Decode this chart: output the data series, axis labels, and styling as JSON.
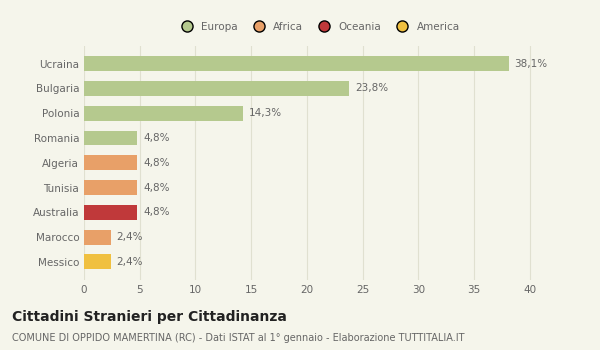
{
  "categories": [
    "Ucraina",
    "Bulgaria",
    "Polonia",
    "Romania",
    "Algeria",
    "Tunisia",
    "Australia",
    "Marocco",
    "Messico"
  ],
  "values": [
    38.1,
    23.8,
    14.3,
    4.8,
    4.8,
    4.8,
    4.8,
    2.4,
    2.4
  ],
  "labels": [
    "38,1%",
    "23,8%",
    "14,3%",
    "4,8%",
    "4,8%",
    "4,8%",
    "4,8%",
    "2,4%",
    "2,4%"
  ],
  "colors": [
    "#b5c98e",
    "#b5c98e",
    "#b5c98e",
    "#b5c98e",
    "#e8a068",
    "#e8a068",
    "#c0393a",
    "#e8a068",
    "#f0c040"
  ],
  "legend": [
    {
      "label": "Europa",
      "color": "#b5c98e"
    },
    {
      "label": "Africa",
      "color": "#e8a068"
    },
    {
      "label": "Oceania",
      "color": "#c0393a"
    },
    {
      "label": "America",
      "color": "#f0c040"
    }
  ],
  "xlim": [
    0,
    42
  ],
  "xticks": [
    0,
    5,
    10,
    15,
    20,
    25,
    30,
    35,
    40
  ],
  "title": "Cittadini Stranieri per Cittadinanza",
  "subtitle": "COMUNE DI OPPIDO MAMERTINA (RC) - Dati ISTAT al 1° gennaio - Elaborazione TUTTITALIA.IT",
  "background_color": "#f5f5eb",
  "grid_color": "#e0e0d0",
  "bar_height": 0.6,
  "label_fontsize": 7.5,
  "tick_fontsize": 7.5,
  "title_fontsize": 10,
  "subtitle_fontsize": 7
}
